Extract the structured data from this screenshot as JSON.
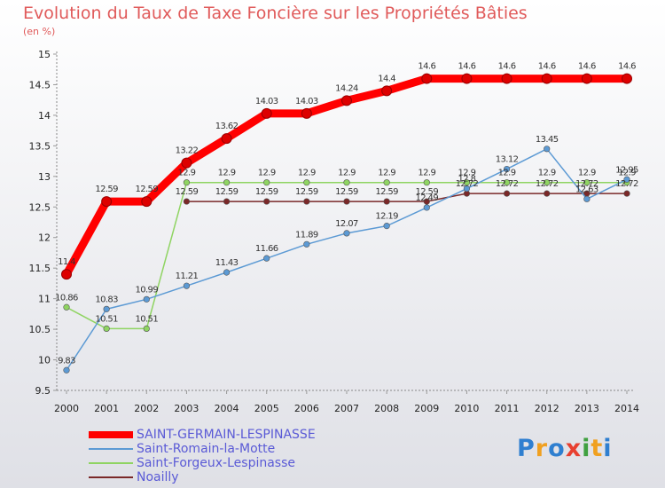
{
  "header": {
    "title": "Evolution du Taux de Taxe Foncière sur les Propriétés Bâties",
    "unit": "(en %)"
  },
  "logo": {
    "text": "Proxiti",
    "colors": [
      "#2f7fd0",
      "#f0a020",
      "#2f7fd0",
      "#e84030",
      "#40a040",
      "#f0a020",
      "#2f7fd0"
    ]
  },
  "chart_data": {
    "type": "line",
    "x": [
      "2000",
      "2001",
      "2002",
      "2003",
      "2004",
      "2005",
      "2006",
      "2007",
      "2008",
      "2009",
      "2010",
      "2011",
      "2012",
      "2013",
      "2014"
    ],
    "ylim": [
      9.5,
      15
    ],
    "yticks": [
      "9.5",
      "10",
      "10.5",
      "11",
      "11.5",
      "12",
      "12.5",
      "13",
      "13.5",
      "14",
      "14.5",
      "15"
    ],
    "grid": false,
    "legend_position": "bottom-left",
    "series": [
      {
        "name": "SAINT-GERMAIN-LESPINASSE",
        "color": "#ff0000",
        "values": [
          11.4,
          12.59,
          12.59,
          13.22,
          13.62,
          14.03,
          14.03,
          14.24,
          14.4,
          14.6,
          14.6,
          14.6,
          14.6,
          14.6,
          14.6
        ],
        "labels": [
          "11.4",
          "12.59",
          "12.59",
          "13.22",
          "13.62",
          "14.03",
          "14.03",
          "14.24",
          "14.4",
          "14.6",
          "14.6",
          "14.6",
          "14.6",
          "14.6",
          "14.6"
        ]
      },
      {
        "name": "Saint-Romain-la-Motte",
        "color": "#5c9ad4",
        "values": [
          9.83,
          10.83,
          10.99,
          11.21,
          11.43,
          11.66,
          11.89,
          12.07,
          12.19,
          12.49,
          12.8,
          13.12,
          13.45,
          12.63,
          12.95
        ],
        "labels": [
          "9.83",
          "10.83",
          "10.99",
          "11.21",
          "11.43",
          "11.66",
          "11.89",
          "12.07",
          "12.19",
          "12.49",
          "12.8",
          "13.12",
          "13.45",
          "12.63",
          "12.95"
        ]
      },
      {
        "name": "Saint-Forgeux-Lespinasse",
        "color": "#8fd462",
        "values": [
          10.86,
          10.51,
          10.51,
          12.9,
          12.9,
          12.9,
          12.9,
          12.9,
          12.9,
          12.9,
          12.9,
          12.9,
          12.9,
          12.9,
          12.9
        ],
        "labels": [
          "10.86",
          "10.51",
          "10.51",
          "12.9",
          "12.9",
          "12.9",
          "12.9",
          "12.9",
          "12.9",
          "12.9",
          "12.9",
          "12.9",
          "12.9",
          "12.9",
          "12.9"
        ]
      },
      {
        "name": "Noailly",
        "color": "#7a2828",
        "values": [
          null,
          null,
          null,
          12.59,
          12.59,
          12.59,
          12.59,
          12.59,
          12.59,
          12.59,
          12.72,
          12.72,
          12.72,
          12.72,
          12.72
        ],
        "labels": [
          null,
          null,
          null,
          "12.59",
          "12.59",
          "12.59",
          "12.59",
          "12.59",
          "12.59",
          "12.59",
          "12.72",
          "12.72",
          "12.72",
          "12.72",
          "12.72"
        ]
      }
    ]
  }
}
